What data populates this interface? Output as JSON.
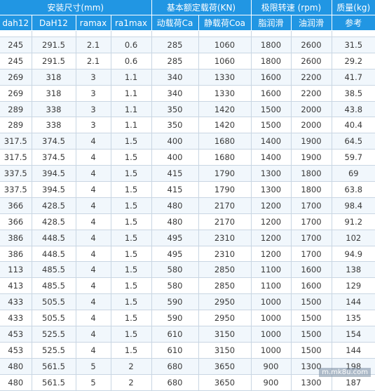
{
  "header": {
    "group_install": "安装尺寸(mm)",
    "group_load": "基本额定载荷(KN)",
    "group_speed": "极限转速 (rpm)",
    "group_mass": "质量(kg)",
    "dah12": "dah12",
    "DaH12": "DaH12",
    "ramax": "ramax",
    "ra1max": "ra1max",
    "ca": "动载荷Ca",
    "coa": "静载荷Coa",
    "grease": "脂润滑",
    "oil": "油润滑",
    "ref": "参考"
  },
  "rows": [
    [
      "245",
      "291.5",
      "2.1",
      "0.6",
      "285",
      "1060",
      "1800",
      "2600",
      "31.5"
    ],
    [
      "245",
      "291.5",
      "2.1",
      "0.6",
      "285",
      "1060",
      "1800",
      "2600",
      "29.2"
    ],
    [
      "269",
      "318",
      "3",
      "1.1",
      "340",
      "1330",
      "1600",
      "2200",
      "41.7"
    ],
    [
      "269",
      "318",
      "3",
      "1.1",
      "340",
      "1330",
      "1600",
      "2200",
      "38.5"
    ],
    [
      "289",
      "338",
      "3",
      "1.1",
      "350",
      "1420",
      "1500",
      "2000",
      "43.8"
    ],
    [
      "289",
      "338",
      "3",
      "1.1",
      "350",
      "1420",
      "1500",
      "2000",
      "40.4"
    ],
    [
      "317.5",
      "374.5",
      "4",
      "1.5",
      "400",
      "1680",
      "1400",
      "1900",
      "64.5"
    ],
    [
      "317.5",
      "374.5",
      "4",
      "1.5",
      "400",
      "1680",
      "1400",
      "1900",
      "59.7"
    ],
    [
      "337.5",
      "394.5",
      "4",
      "1.5",
      "415",
      "1790",
      "1300",
      "1800",
      "69"
    ],
    [
      "337.5",
      "394.5",
      "4",
      "1.5",
      "415",
      "1790",
      "1300",
      "1800",
      "63.8"
    ],
    [
      "366",
      "428.5",
      "4",
      "1.5",
      "480",
      "2170",
      "1200",
      "1700",
      "98.4"
    ],
    [
      "366",
      "428.5",
      "4",
      "1.5",
      "480",
      "2170",
      "1200",
      "1700",
      "91.2"
    ],
    [
      "386",
      "448.5",
      "4",
      "1.5",
      "495",
      "2310",
      "1200",
      "1700",
      "102"
    ],
    [
      "386",
      "448.5",
      "4",
      "1.5",
      "495",
      "2310",
      "1200",
      "1700",
      "94.9"
    ],
    [
      "113",
      "485.5",
      "4",
      "1.5",
      "580",
      "2850",
      "1100",
      "1600",
      "138"
    ],
    [
      "413",
      "485.5",
      "4",
      "1.5",
      "580",
      "2850",
      "1100",
      "1600",
      "129"
    ],
    [
      "433",
      "505.5",
      "4",
      "1.5",
      "590",
      "2950",
      "1000",
      "1500",
      "144"
    ],
    [
      "433",
      "505.5",
      "4",
      "1.5",
      "590",
      "2950",
      "1000",
      "1500",
      "135"
    ],
    [
      "453",
      "525.5",
      "4",
      "1.5",
      "610",
      "3150",
      "1000",
      "1500",
      "154"
    ],
    [
      "453",
      "525.5",
      "4",
      "1.5",
      "610",
      "3150",
      "1000",
      "1500",
      "144"
    ],
    [
      "480",
      "561.5",
      "5",
      "2",
      "680",
      "3650",
      "900",
      "1300",
      "198"
    ],
    [
      "480",
      "561.5",
      "5",
      "2",
      "680",
      "3650",
      "900",
      "1300",
      "187"
    ]
  ],
  "watermark": "m.mk8u.com"
}
